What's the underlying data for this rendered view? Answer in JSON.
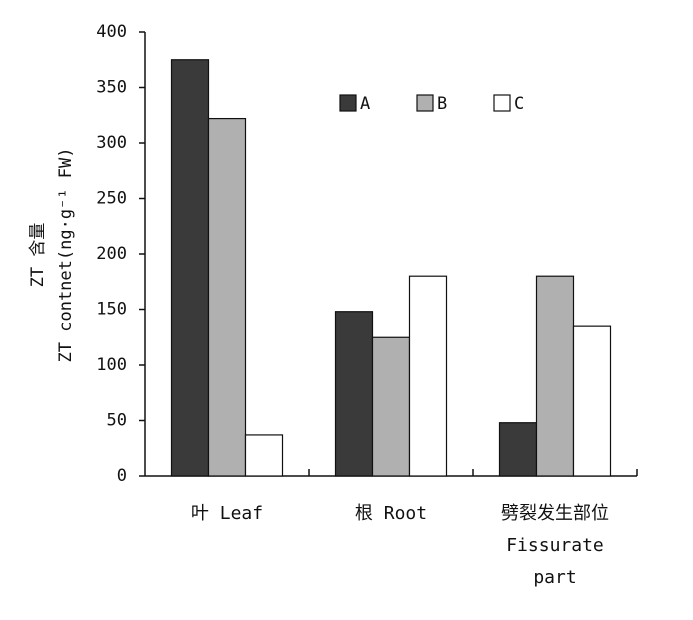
{
  "chart_data": {
    "type": "bar",
    "y_label": [
      "ZT 含量",
      "ZT contnet(ng·g⁻¹ FW)"
    ],
    "categories": [
      "叶 Leaf",
      "根 Root",
      "劈裂发生部位\nFissurate\npart"
    ],
    "series": [
      {
        "name": "A",
        "color": "#3a3a3a",
        "values": [
          375,
          148,
          48
        ]
      },
      {
        "name": "B",
        "color": "#b0b0b0",
        "values": [
          322,
          125,
          180
        ]
      },
      {
        "name": "C",
        "color": "#ffffff",
        "values": [
          37,
          180,
          135
        ]
      }
    ],
    "ylim": [
      0,
      400
    ],
    "yticks": [
      0,
      50,
      100,
      150,
      200,
      250,
      300,
      350,
      400
    ]
  }
}
